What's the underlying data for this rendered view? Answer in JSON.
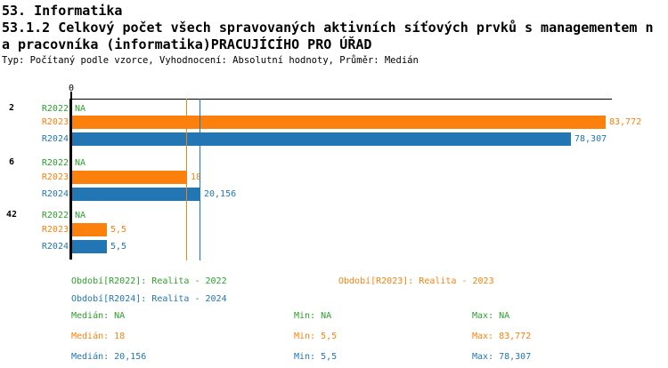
{
  "header": {
    "title": "53. Informatika",
    "indicator_line1": "53.1.2 Celkový počet všech spravovaných aktivních síťových prvků s managementem n",
    "indicator_line2": "a pracovníka (informatika)PRACUJÍCÍHO PRO ÚŘAD",
    "meta": "Typ: Počítaný podle vzorce, Vyhodnocení: Absolutní hodnoty, Průměr: Medián"
  },
  "colors": {
    "r2022": "#2CA02C",
    "r2023": "#FC810C",
    "r2024": "#2276B4",
    "axis": "#000000"
  },
  "chart_data": {
    "type": "bar",
    "orientation": "horizontal",
    "x_axis": {
      "tick_label": "0",
      "xlim": [
        0,
        84.75
      ],
      "grid": false
    },
    "groups": [
      {
        "label": "2",
        "bars": [
          {
            "series": "R2022",
            "value": null,
            "display": "NA"
          },
          {
            "series": "R2023",
            "value": 83.772,
            "display": "83,772"
          },
          {
            "series": "R2024",
            "value": 78.307,
            "display": "78,307"
          }
        ]
      },
      {
        "label": "6",
        "bars": [
          {
            "series": "R2022",
            "value": null,
            "display": "NA"
          },
          {
            "series": "R2023",
            "value": 18,
            "display": "18"
          },
          {
            "series": "R2024",
            "value": 20.156,
            "display": "20,156"
          }
        ]
      },
      {
        "label": "42",
        "bars": [
          {
            "series": "R2022",
            "value": null,
            "display": "NA"
          },
          {
            "series": "R2023",
            "value": 5.5,
            "display": "5,5"
          },
          {
            "series": "R2024",
            "value": 5.5,
            "display": "5,5"
          }
        ]
      }
    ],
    "median_lines": [
      {
        "series": "R2023",
        "value": 18
      },
      {
        "series": "R2024",
        "value": 20.156
      }
    ],
    "legend": {
      "r2022": "Období[R2022]: Realita - 2022",
      "r2023": "Období[R2023]: Realita - 2023",
      "r2024": "Období[R2024]: Realita - 2024"
    },
    "stats": {
      "r2022": {
        "median": "Medián: NA",
        "min": "Min: NA",
        "max": "Max: NA"
      },
      "r2023": {
        "median": "Medián: 18",
        "min": "Min: 5,5",
        "max": "Max: 83,772"
      },
      "r2024": {
        "median": "Medián: 20,156",
        "min": "Min: 5,5",
        "max": "Max: 78,307"
      }
    }
  }
}
